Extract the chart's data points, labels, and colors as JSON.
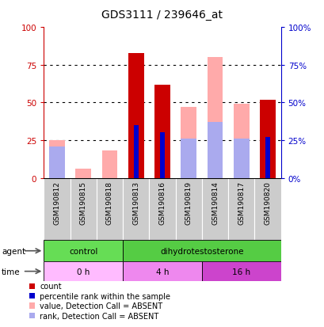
{
  "title": "GDS3111 / 239646_at",
  "samples": [
    "GSM190812",
    "GSM190815",
    "GSM190818",
    "GSM190813",
    "GSM190816",
    "GSM190819",
    "GSM190814",
    "GSM190817",
    "GSM190820"
  ],
  "count_values": [
    1,
    6,
    1,
    83,
    62,
    1,
    1,
    1,
    52
  ],
  "rank_values": [
    0,
    0,
    0,
    35,
    30,
    0,
    0,
    0,
    27
  ],
  "absent_value": [
    25,
    6,
    18,
    0,
    0,
    47,
    80,
    49,
    0
  ],
  "absent_rank": [
    21,
    0,
    0,
    0,
    0,
    26,
    37,
    26,
    0
  ],
  "is_absent": [
    true,
    true,
    true,
    false,
    false,
    true,
    true,
    true,
    false
  ],
  "agent_groups": [
    {
      "label": "control",
      "start": 0,
      "end": 3,
      "color": "#66dd55"
    },
    {
      "label": "dihydrotestosterone",
      "start": 3,
      "end": 9,
      "color": "#55cc44"
    }
  ],
  "time_groups": [
    {
      "label": "0 h",
      "start": 0,
      "end": 3,
      "color": "#ffbbff"
    },
    {
      "label": "4 h",
      "start": 3,
      "end": 6,
      "color": "#ee88ee"
    },
    {
      "label": "16 h",
      "start": 6,
      "end": 9,
      "color": "#cc44cc"
    }
  ],
  "bar_width": 0.6,
  "ylim": [
    0,
    100
  ],
  "yticks": [
    0,
    25,
    50,
    75,
    100
  ],
  "color_count": "#cc0000",
  "color_rank": "#0000cc",
  "color_absent_value": "#ffaaaa",
  "color_absent_rank": "#aaaaee",
  "legend_items": [
    {
      "color": "#cc0000",
      "label": "count"
    },
    {
      "color": "#0000cc",
      "label": "percentile rank within the sample"
    },
    {
      "color": "#ffaaaa",
      "label": "value, Detection Call = ABSENT"
    },
    {
      "color": "#aaaaee",
      "label": "rank, Detection Call = ABSENT"
    }
  ],
  "left_axis_color": "#cc0000",
  "right_axis_color": "#0000cc",
  "background_color": "#ffffff",
  "plot_bg": "#ffffff",
  "title_fontsize": 10,
  "tick_fontsize": 7.5,
  "label_fontsize": 7.5
}
